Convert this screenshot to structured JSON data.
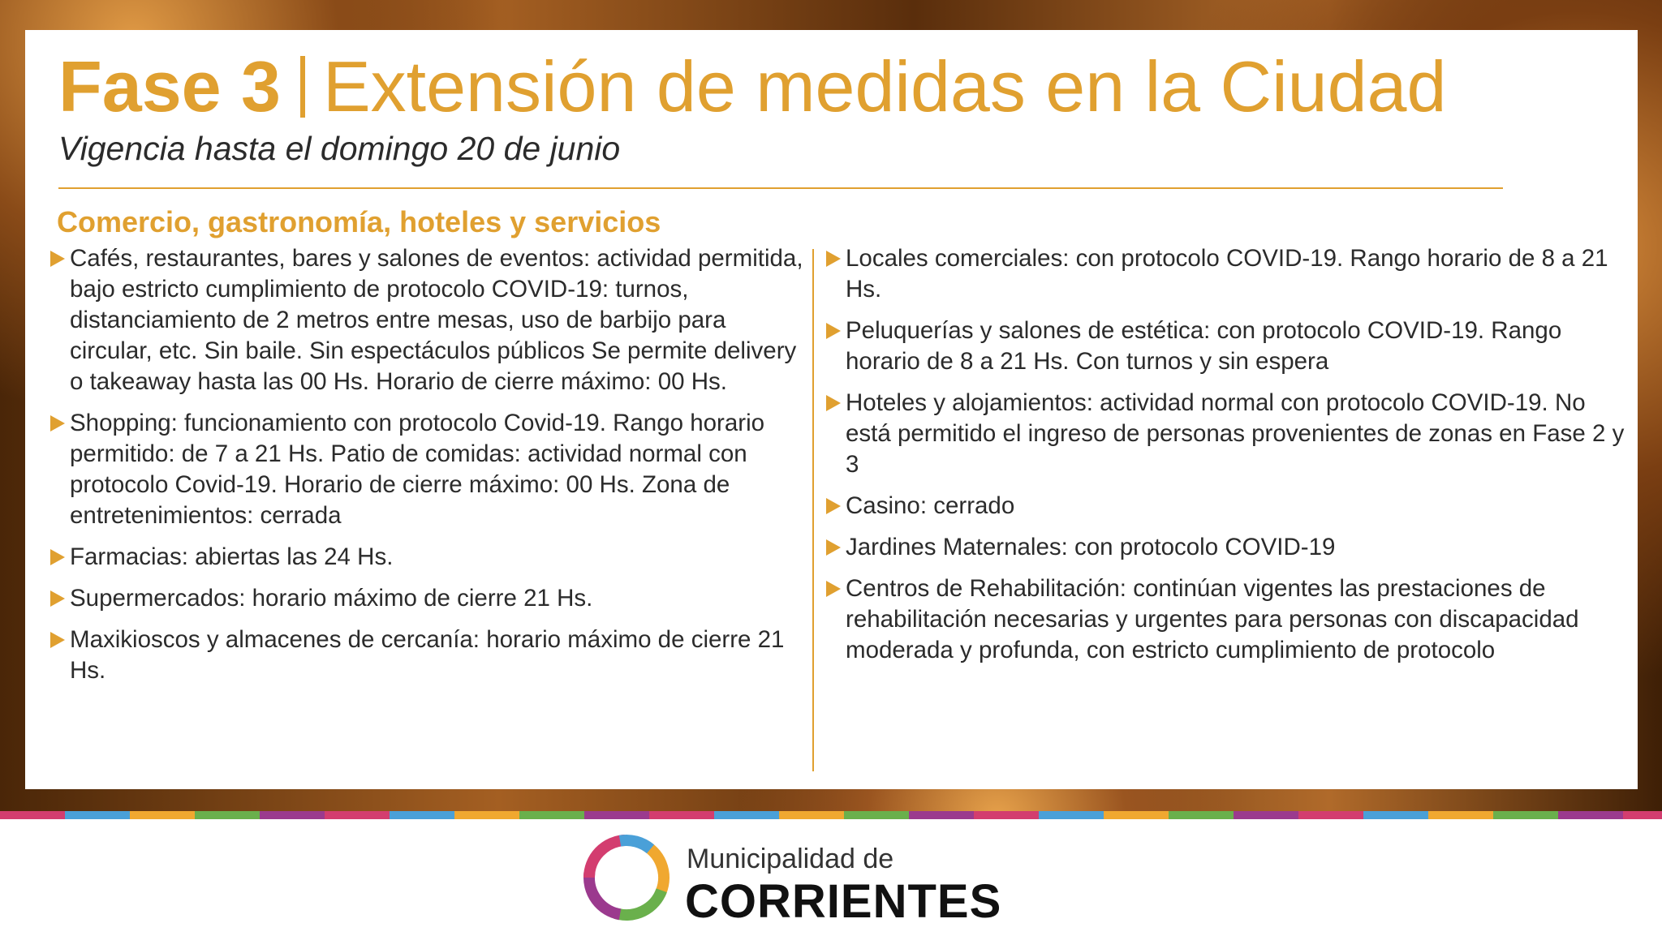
{
  "header": {
    "phase": "Fase 3",
    "title": "Extensión de medidas en la Ciudad",
    "subtitle": "Vigencia hasta el domingo 20 de junio"
  },
  "section": {
    "heading": "Comercio, gastronomía, hoteles y servicios",
    "columns": [
      [
        "Cafés, restaurantes, bares y salones de eventos: actividad permitida, bajo estricto cumplimiento de protocolo COVID-19: turnos, distanciamiento de 2 metros entre mesas, uso de barbijo para circular, etc. Sin baile. Sin espectáculos públicos Se permite delivery o takeaway hasta las 00 Hs. Horario de cierre máximo: 00 Hs.",
        "Shopping: funcionamiento con protocolo Covid-19. Rango horario permitido: de 7 a 21 Hs. Patio de comidas: actividad normal con protocolo Covid-19. Horario de cierre máximo: 00 Hs. Zona de entretenimientos: cerrada",
        "Farmacias: abiertas las 24 Hs.",
        "Supermercados: horario máximo de cierre 21 Hs.",
        "Maxikioscos y almacenes de cercanía: horario máximo de cierre 21 Hs."
      ],
      [
        "Locales comerciales: con protocolo COVID-19. Rango horario de 8 a 21 Hs.",
        "Peluquerías y salones de estética: con protocolo COVID-19. Rango horario de 8 a 21 Hs. Con turnos y sin espera",
        "Hoteles y alojamientos: actividad normal con protocolo COVID-19. No está permitido el ingreso de personas provenientes de zonas en Fase 2 y 3",
        "Casino: cerrado",
        "Jardines Maternales: con protocolo COVID-19",
        "Centros de Rehabilitación: continúan vigentes las prestaciones de rehabilitación necesarias y urgentes para personas con discapacidad moderada y profunda, con estricto cumplimiento de protocolo"
      ]
    ]
  },
  "footer": {
    "logo_line1": "Municipalidad de",
    "logo_line2": "CORRIENTES"
  }
}
